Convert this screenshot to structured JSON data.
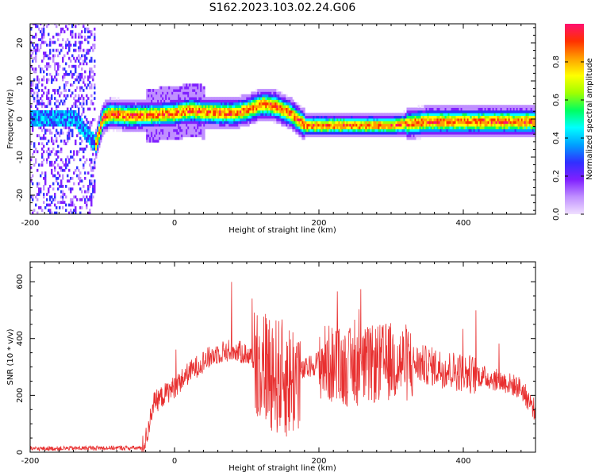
{
  "title": "S162.2023.103.02.24.G06",
  "chart_data": [
    {
      "type": "heatmap",
      "xlabel": "Height of straight line (km)",
      "ylabel": "Frequency (Hz)",
      "xlim": [
        -200,
        500
      ],
      "ylim": [
        -25,
        25
      ],
      "x_ticks": [
        -200,
        0,
        200,
        400
      ],
      "y_ticks": [
        -20,
        -10,
        0,
        10,
        20
      ],
      "colorbar": {
        "label": "Normalized spectral amplitude",
        "range": [
          0,
          1
        ],
        "ticks": [
          0.0,
          0.2,
          0.4,
          0.6,
          0.8
        ],
        "colormap": [
          "#f0e0ff",
          "#c090ff",
          "#8020ff",
          "#3030ff",
          "#00a0ff",
          "#00ffff",
          "#00ff60",
          "#a0ff00",
          "#ffff00",
          "#ffa000",
          "#ff3000",
          "#ff1070"
        ]
      },
      "ridge_frequency_hz": {
        "x": [
          -180,
          -140,
          -110,
          -100,
          -90,
          -60,
          -30,
          0,
          20,
          40,
          80,
          100,
          120,
          140,
          160,
          180,
          200,
          300,
          350,
          400,
          500
        ],
        "y": [
          0,
          0,
          -7,
          0,
          1,
          0.5,
          0.8,
          1.2,
          2,
          1.5,
          1.2,
          2,
          3.5,
          3,
          1,
          -2,
          -2,
          -2,
          -1,
          -1,
          -1
        ]
      },
      "grid": false
    },
    {
      "type": "line",
      "xlabel": "Height of straight line (km)",
      "ylabel": "SNR (10 * v/v)",
      "xlim": [
        -200,
        500
      ],
      "ylim": [
        0,
        670
      ],
      "x_ticks": [
        -200,
        0,
        200,
        400
      ],
      "y_ticks": [
        0,
        200,
        400,
        600
      ],
      "series": [
        {
          "color": "#e83030",
          "envelope_x": [
            -200,
            -100,
            -45,
            -38,
            -30,
            -10,
            0,
            20,
            40,
            60,
            80,
            100,
            120,
            140,
            160,
            180,
            200,
            230,
            260,
            300,
            340,
            380,
            420,
            460,
            480,
            500
          ],
          "envelope_y": [
            12,
            15,
            15,
            60,
            170,
            210,
            230,
            280,
            320,
            350,
            360,
            345,
            310,
            270,
            250,
            290,
            320,
            300,
            300,
            320,
            310,
            290,
            270,
            245,
            225,
            145
          ]
        }
      ],
      "grid": false
    }
  ]
}
